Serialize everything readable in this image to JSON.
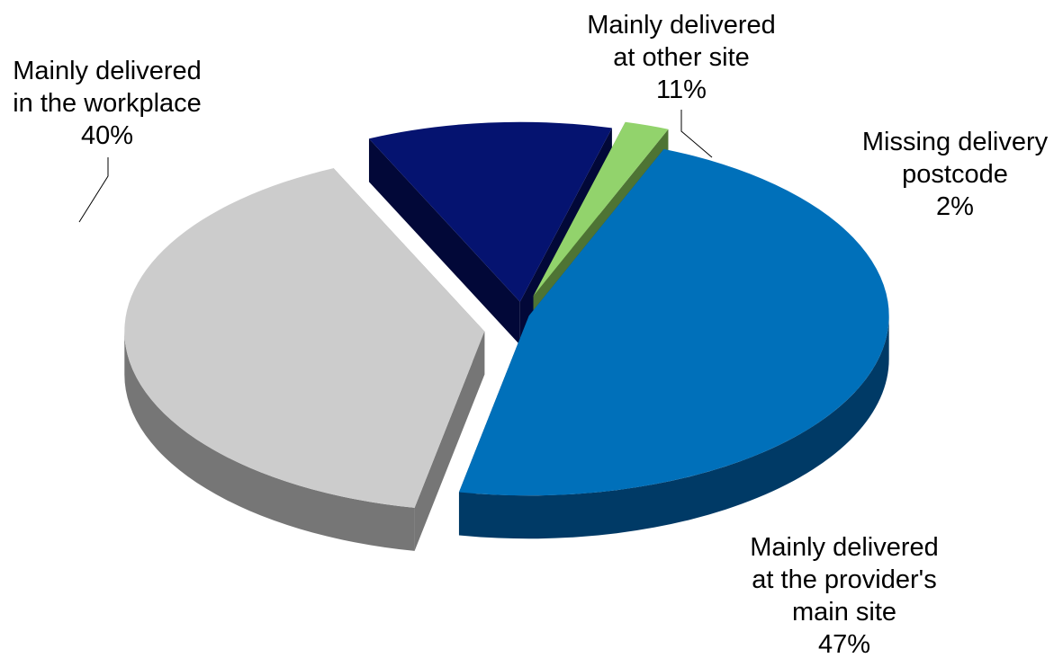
{
  "chart_data": {
    "type": "pie",
    "title": "",
    "style": "3d-exploded",
    "slices": [
      {
        "label_lines": [
          "Mainly delivered",
          "at the provider's",
          "main site"
        ],
        "value": 47,
        "value_label": "47%",
        "color_top": "#0070BA",
        "color_side": "#003A66"
      },
      {
        "label_lines": [
          "Mainly delivered",
          "in the workplace"
        ],
        "value": 40,
        "value_label": "40%",
        "color_top": "#CCCCCC",
        "color_side": "#767676"
      },
      {
        "label_lines": [
          "Mainly delivered",
          "at other site"
        ],
        "value": 11,
        "value_label": "11%",
        "color_top": "#051370",
        "color_side": "#020838"
      },
      {
        "label_lines": [
          "Missing delivery",
          "postcode"
        ],
        "value": 2,
        "value_label": "2%",
        "color_top": "#92D36C",
        "color_side": "#4E7434"
      }
    ]
  }
}
